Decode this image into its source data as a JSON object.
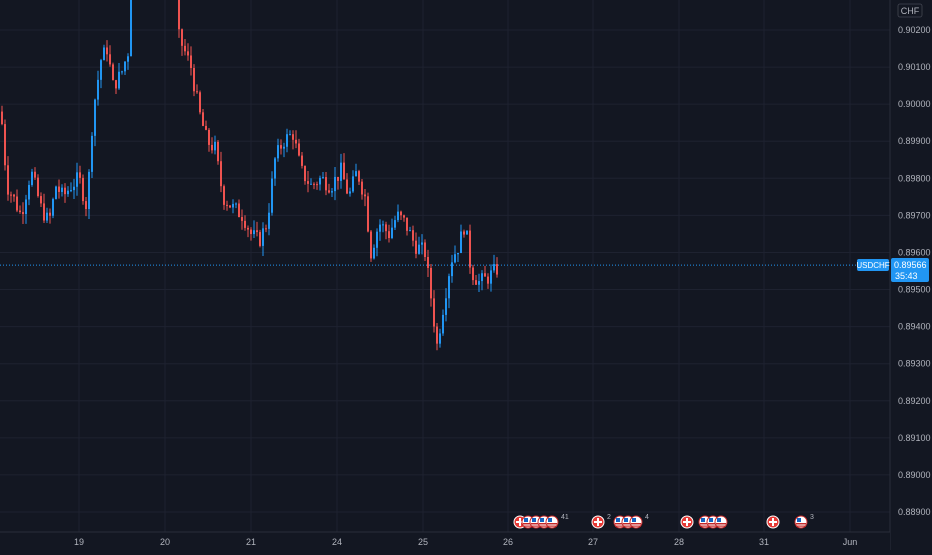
{
  "chart_data": {
    "type": "candlestick",
    "symbol": "USDCHF",
    "currency": "CHF",
    "last_price": "0.89566",
    "countdown": "35:43",
    "ylim": [
      0.8886,
      0.903
    ],
    "y_ticks": [
      "0.90200",
      "0.90100",
      "0.90000",
      "0.89900",
      "0.89800",
      "0.89700",
      "0.89600",
      "0.89500",
      "0.89400",
      "0.89300",
      "0.89200",
      "0.89100",
      "0.89000",
      "0.88900"
    ],
    "x_ticks": [
      "19",
      "20",
      "21",
      "24",
      "25",
      "26",
      "27",
      "28",
      "31",
      "Jun"
    ],
    "grid": true,
    "colors": {
      "up": "#2196f3",
      "down": "#ef5350",
      "background": "#131722",
      "grid": "#1e2230",
      "price_line": "#2196f3"
    },
    "event_groups": [
      {
        "icons": [
          "swiss-flag-icon",
          "us-flag-icon",
          "us-flag-icon",
          "us-flag-icon",
          "us-flag-icon"
        ],
        "badge": "41"
      },
      {
        "icons": [
          "swiss-flag-icon"
        ],
        "badge": "2"
      },
      {
        "icons": [
          "us-flag-icon",
          "us-flag-icon",
          "us-flag-icon"
        ],
        "badge": "4"
      },
      {
        "icons": [
          "swiss-flag-icon"
        ],
        "badge": ""
      },
      {
        "icons": [
          "us-flag-icon",
          "us-flag-icon",
          "us-flag-icon"
        ],
        "badge": ""
      },
      {
        "icons": [
          "swiss-flag-icon"
        ],
        "badge": ""
      },
      {
        "icons": [
          "us-flag-icon"
        ],
        "badge": "3"
      }
    ]
  }
}
